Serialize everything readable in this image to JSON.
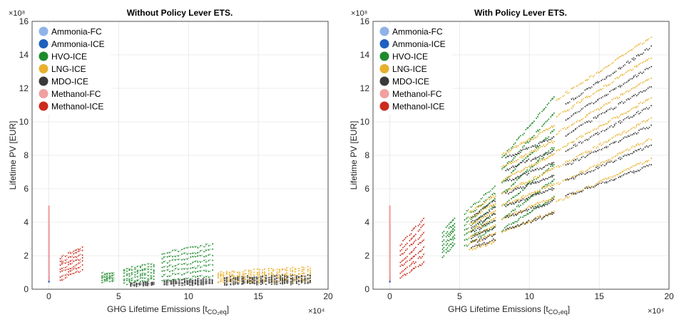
{
  "chart_data": [
    {
      "type": "scatter",
      "title": "Without Policy Lever ETS.",
      "xlabel": "GHG  Lifetime  Emissions  [t",
      "xlabel_sub": "CO₂eq",
      "xlabel_end": "]",
      "ylabel": "Lifetime PV [EUR]",
      "x_exponent": "×10⁴",
      "y_exponent": "×10⁸",
      "xlim": [
        -1.2,
        20
      ],
      "ylim": [
        0,
        16
      ],
      "x_ticks": [
        "0",
        "5",
        "10",
        "15",
        "20"
      ],
      "y_ticks": [
        "0",
        "2",
        "4",
        "6",
        "8",
        "10",
        "12",
        "14",
        "16"
      ],
      "grid": true,
      "legend_position": "top-left",
      "series": [
        {
          "name": "Ammonia-FC",
          "color": "#8fb3e8",
          "clusters": [
            {
              "x": [
                0.0,
                0.05
              ],
              "y": [
                0.6,
                3.9
              ]
            }
          ]
        },
        {
          "name": "Ammonia-ICE",
          "color": "#1f5fbf",
          "clusters": [
            {
              "x": [
                0.0,
                0.05
              ],
              "y": [
                0.4,
                0.8
              ]
            }
          ]
        },
        {
          "name": "HVO-ICE",
          "color": "#1e8a2c",
          "clusters": [
            {
              "x": [
                3.7,
                4.7
              ],
              "y": [
                0.4,
                0.9
              ],
              "y_end": [
                0.5,
                1.0
              ]
            },
            {
              "x": [
                5.3,
                7.6
              ],
              "y": [
                0.3,
                1.2
              ],
              "y_end": [
                0.6,
                1.5
              ]
            },
            {
              "x": [
                8.0,
                11.8
              ],
              "y": [
                0.5,
                2.1
              ],
              "y_end": [
                0.8,
                2.7
              ]
            }
          ]
        },
        {
          "name": "LNG-ICE",
          "color": "#e8b02c",
          "clusters": [
            {
              "x": [
                12.0,
                18.8
              ],
              "y": [
                0.4,
                1.0
              ],
              "y_end": [
                0.5,
                1.3
              ]
            }
          ]
        },
        {
          "name": "MDO-ICE",
          "color": "#3a3a3a",
          "clusters": [
            {
              "x": [
                5.8,
                7.6
              ],
              "y": [
                0.2,
                0.35
              ],
              "y_end": [
                0.25,
                0.4
              ]
            },
            {
              "x": [
                8.2,
                11.8
              ],
              "y": [
                0.25,
                0.5
              ],
              "y_end": [
                0.3,
                0.6
              ]
            },
            {
              "x": [
                12.5,
                18.8
              ],
              "y": [
                0.3,
                0.7
              ],
              "y_end": [
                0.35,
                0.8
              ]
            }
          ]
        },
        {
          "name": "Methanol-FC",
          "color": "#f0a0a0",
          "clusters": [
            {
              "x": [
                0.0,
                0.1
              ],
              "y": [
                0.5,
                5.0
              ]
            }
          ]
        },
        {
          "name": "Methanol-ICE",
          "color": "#cc2a1c",
          "clusters": [
            {
              "x": [
                0.7,
                2.5
              ],
              "y": [
                0.5,
                1.8
              ],
              "y_end": [
                1.2,
                2.6
              ]
            }
          ]
        }
      ]
    },
    {
      "type": "scatter",
      "title": "With Policy Lever ETS.",
      "xlabel": "GHG  Lifetime  Emissions  [t",
      "xlabel_sub": "CO₂eq",
      "xlabel_end": "]",
      "ylabel": "Lifetime PV [EUR]",
      "x_exponent": "×10⁴",
      "y_exponent": "×10⁸",
      "xlim": [
        -1.2,
        20
      ],
      "ylim": [
        0,
        16
      ],
      "x_ticks": [
        "0",
        "5",
        "10",
        "15",
        "20"
      ],
      "y_ticks": [
        "0",
        "2",
        "4",
        "6",
        "8",
        "10",
        "12",
        "14",
        "16"
      ],
      "grid": true,
      "legend_position": "top-left",
      "series": [
        {
          "name": "Ammonia-FC",
          "color": "#8fb3e8",
          "clusters": [
            {
              "x": [
                0.0,
                0.05
              ],
              "y": [
                0.6,
                3.9
              ]
            }
          ]
        },
        {
          "name": "Ammonia-ICE",
          "color": "#1f5fbf",
          "clusters": [
            {
              "x": [
                0.0,
                0.05
              ],
              "y": [
                0.4,
                0.8
              ]
            }
          ]
        },
        {
          "name": "HVO-ICE",
          "color": "#1e8a2c",
          "clusters": [
            {
              "x": [
                3.7,
                4.7
              ],
              "y": [
                1.8,
                3.3
              ],
              "y_end": [
                2.8,
                4.3
              ]
            },
            {
              "x": [
                5.3,
                7.6
              ],
              "y": [
                2.5,
                4.5
              ],
              "y_end": [
                3.8,
                6.2
              ]
            },
            {
              "x": [
                8.0,
                11.8
              ],
              "y": [
                3.5,
                7.8
              ],
              "y_end": [
                5.5,
                11.5
              ]
            }
          ]
        },
        {
          "name": "LNG-ICE",
          "color": "#e8b02c",
          "clusters": [
            {
              "x": [
                5.6,
                7.6
              ],
              "y": [
                2.3,
                4.5
              ],
              "y_end": [
                2.8,
                5.6
              ]
            },
            {
              "x": [
                8.0,
                11.8
              ],
              "y": [
                3.4,
                8.0
              ],
              "y_end": [
                4.6,
                9.7
              ]
            },
            {
              "x": [
                11.9,
                18.8
              ],
              "y": [
                5.2,
                11.3
              ],
              "y_end": [
                7.8,
                15.1
              ]
            }
          ]
        },
        {
          "name": "MDO-ICE",
          "color": "#3a3a3a",
          "clusters": [
            {
              "x": [
                5.8,
                7.6
              ],
              "y": [
                2.4,
                4.3
              ],
              "y_end": [
                2.9,
                5.3
              ]
            },
            {
              "x": [
                8.2,
                11.8
              ],
              "y": [
                3.5,
                7.8
              ],
              "y_end": [
                4.5,
                9.0
              ]
            },
            {
              "x": [
                12.5,
                18.8
              ],
              "y": [
                5.5,
                11.0
              ],
              "y_end": [
                7.4,
                14.5
              ]
            }
          ]
        },
        {
          "name": "Methanol-FC",
          "color": "#f0a0a0",
          "clusters": [
            {
              "x": [
                0.0,
                0.1
              ],
              "y": [
                0.5,
                5.0
              ]
            }
          ]
        },
        {
          "name": "Methanol-ICE",
          "color": "#cc2a1c",
          "clusters": [
            {
              "x": [
                0.7,
                2.5
              ],
              "y": [
                0.6,
                2.6
              ],
              "y_end": [
                1.6,
                4.3
              ]
            }
          ]
        }
      ]
    }
  ]
}
